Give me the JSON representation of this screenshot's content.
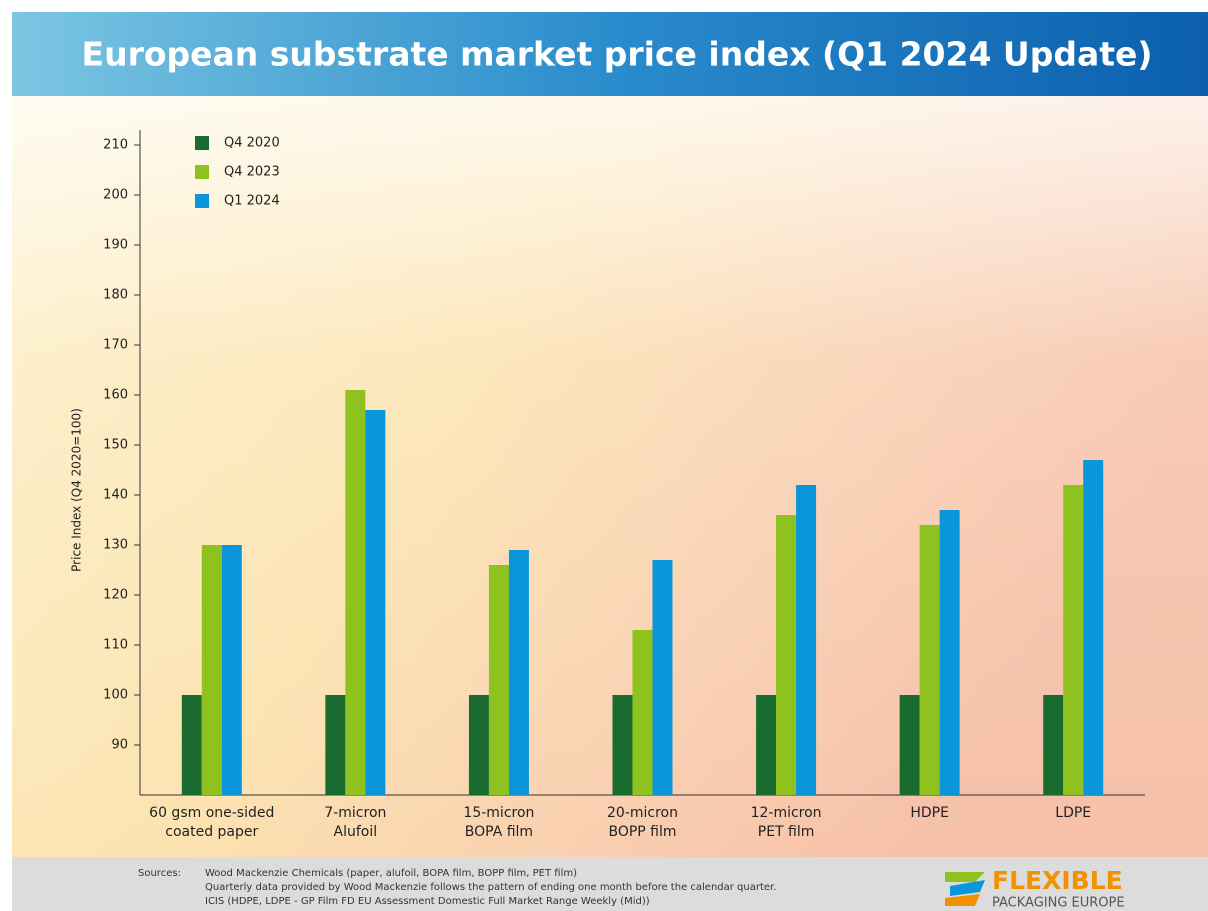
{
  "chart_data": {
    "type": "bar",
    "title": "European substrate market price index (Q1 2024 Update)",
    "y_label": "Price Index (Q4 2020=100)",
    "categories": [
      [
        "60 gsm one-sided",
        "coated paper"
      ],
      [
        "7-micron",
        "Alufoil"
      ],
      [
        "15-micron",
        "BOPA film"
      ],
      [
        "20-micron",
        "BOPP film"
      ],
      [
        "12-micron",
        "PET film"
      ],
      [
        "HDPE"
      ],
      [
        "LDPE"
      ]
    ],
    "series": [
      {
        "name": "Q4 2020",
        "color": "#1a6b2f",
        "values": [
          100,
          100,
          100,
          100,
          100,
          100,
          100
        ]
      },
      {
        "name": "Q4 2023",
        "color": "#8dc21f",
        "values": [
          130,
          161,
          126,
          113,
          136,
          134,
          142
        ]
      },
      {
        "name": "Q1 2024",
        "color": "#0a96d8",
        "values": [
          130,
          157,
          129,
          127,
          142,
          137,
          147
        ]
      }
    ],
    "ylim": [
      80,
      213
    ],
    "yticks": [
      90,
      100,
      110,
      120,
      130,
      140,
      150,
      160,
      170,
      180,
      190,
      200,
      210
    ],
    "legend": "upper left",
    "sources_label": "Sources:",
    "sources": [
      "Wood Mackenzie Chemicals (paper, alufoil, BOPA film, BOPP film, PET film)",
      "Quarterly data provided by Wood Mackenzie follows the pattern of ending one month before the calendar quarter.",
      "ICIS (HDPE, LDPE - GP Film FD EU Assessment Domestic Full Market Range Weekly (Mid))"
    ],
    "logo": [
      "FLEXIBLE",
      "PACKAGING EUROPE"
    ]
  }
}
